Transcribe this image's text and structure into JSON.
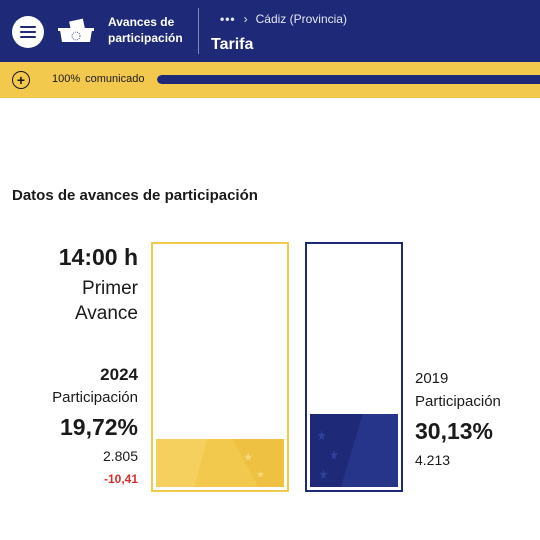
{
  "header": {
    "app_title_line1": "Avances de",
    "app_title_line2": "participación",
    "breadcrumb_more": "•••",
    "breadcrumb_parent": "Cádiz (Provincia)",
    "page_title": "Tarifa",
    "menu_icon": "hamburger-icon",
    "logo_icon": "ballot-box-eu-icon",
    "colors": {
      "primary": "#1e2a78",
      "accent": "#f2c94c"
    }
  },
  "progress": {
    "percent_label": "100%",
    "status_label": "comunicado",
    "fraction": 1.0,
    "expand_icon": "plus-circle-icon"
  },
  "section": {
    "title": "Datos de avances de participación"
  },
  "advance": {
    "time": "14:00 h",
    "name_line1": "Primer",
    "name_line2": "Avance"
  },
  "current": {
    "year": "2024",
    "label": "Participación",
    "percent": "19,72%",
    "percent_value": 19.72,
    "votes": "2.805",
    "difference": "-10,41",
    "color": "#f2c94c"
  },
  "previous": {
    "year": "2019",
    "label": "Participación",
    "percent": "30,13%",
    "percent_value": 30.13,
    "votes": "4.213",
    "color": "#1e2a78"
  }
}
